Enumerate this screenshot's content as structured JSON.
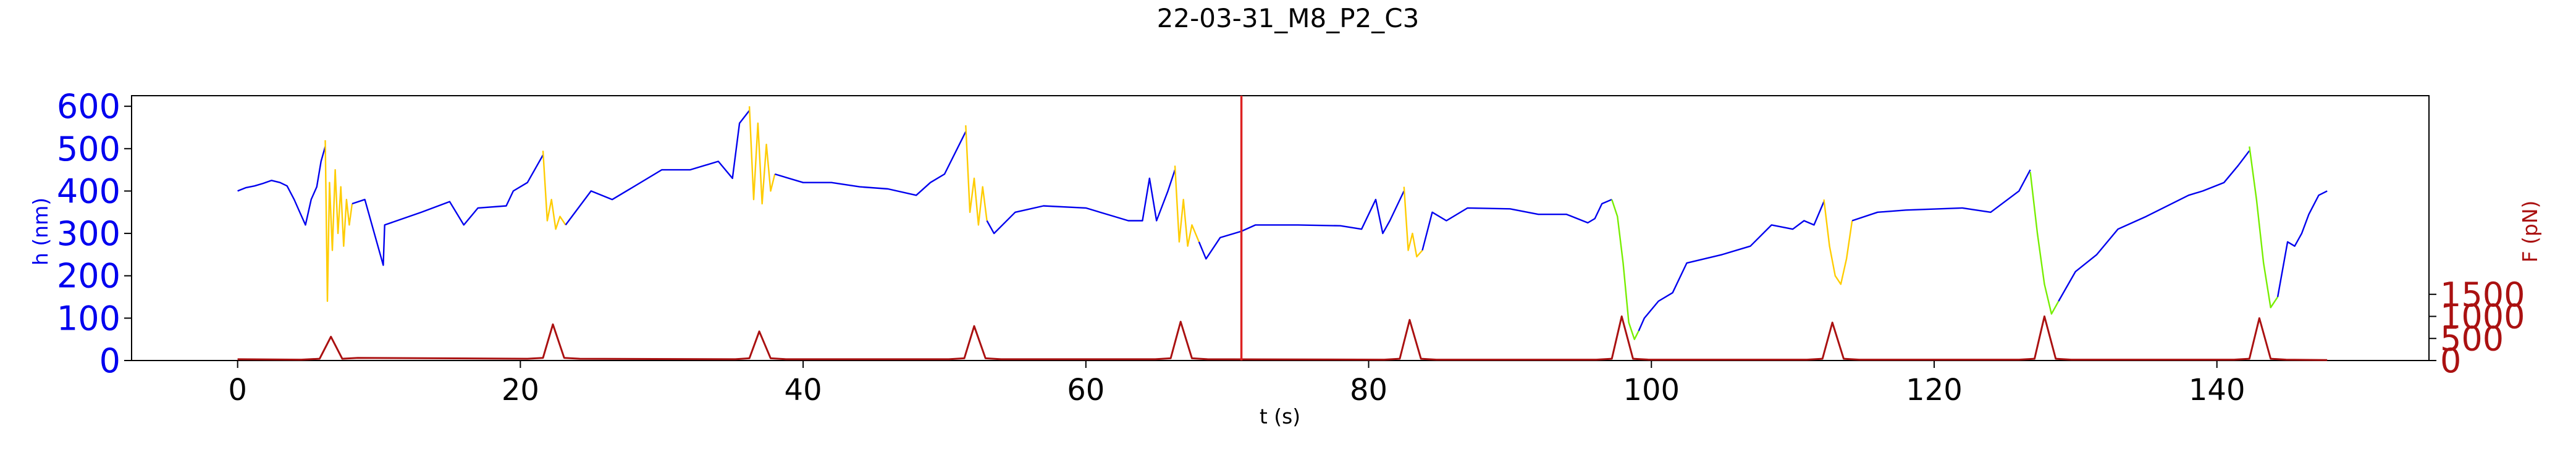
{
  "chart_data": {
    "type": "line",
    "title": "22-03-31_M8_P2_C3",
    "xlabel": "t (s)",
    "ylabel_left": "h (nm)",
    "ylabel_right": "F (pN)",
    "xlim": [
      -7.5,
      155
    ],
    "ylim_left": [
      0,
      625
    ],
    "ylim_right": [
      0,
      6000
    ],
    "x_ticks": [
      0,
      20,
      40,
      60,
      80,
      100,
      120,
      140
    ],
    "y_ticks_left": [
      0,
      100,
      200,
      300,
      400,
      500,
      600
    ],
    "y_ticks_right": [
      0,
      500,
      1000,
      1500
    ],
    "colors": {
      "height_line": "#0000ee",
      "compression_phase": "#ffcc00",
      "relaxation_phase": "#77ee00",
      "force_line": "#aa1111",
      "marker_line": "#dd2222",
      "left_axis": "#0000ee",
      "right_axis": "#aa1111"
    },
    "marker_x": 71,
    "grid": false,
    "legend": "none",
    "series": [
      {
        "axis": "left",
        "color": "#0000ee",
        "x": [
          0,
          0.6,
          1.2,
          1.8,
          2.4,
          3.0,
          3.5,
          4.0,
          4.4,
          4.8,
          5.2,
          5.6,
          5.9,
          6.2
        ],
        "y": [
          400,
          408,
          412,
          418,
          425,
          420,
          412,
          380,
          350,
          320,
          380,
          410,
          470,
          505
        ]
      },
      {
        "axis": "left",
        "color": "#ffcc00",
        "x": [
          6.2,
          6.35,
          6.5,
          6.7,
          6.9,
          7.1,
          7.3,
          7.5,
          7.7,
          7.9,
          8.1
        ],
        "y": [
          520,
          140,
          420,
          260,
          450,
          300,
          410,
          270,
          380,
          320,
          370
        ]
      },
      {
        "axis": "left",
        "color": "#0000ee",
        "x": [
          8.1,
          9.0,
          10.3,
          10.4,
          13.0,
          15.0,
          16.0,
          17.0,
          19.0,
          19.5,
          20.5,
          21.6
        ],
        "y": [
          370,
          380,
          225,
          320,
          350,
          375,
          320,
          360,
          365,
          400,
          420,
          485
        ]
      },
      {
        "axis": "left",
        "color": "#ffcc00",
        "x": [
          21.6,
          21.9,
          22.2,
          22.5,
          22.8,
          23.2
        ],
        "y": [
          495,
          330,
          380,
          310,
          340,
          320
        ]
      },
      {
        "axis": "left",
        "color": "#0000ee",
        "x": [
          23.2,
          25.0,
          26.5,
          28.0,
          30.0,
          32.0,
          34.0,
          35.0,
          35.5,
          36.2
        ],
        "y": [
          320,
          400,
          380,
          410,
          450,
          450,
          470,
          430,
          560,
          590
        ]
      },
      {
        "axis": "left",
        "color": "#ffcc00",
        "x": [
          36.2,
          36.5,
          36.8,
          37.1,
          37.4,
          37.7,
          38.0
        ],
        "y": [
          600,
          380,
          560,
          370,
          510,
          400,
          440
        ]
      },
      {
        "axis": "left",
        "color": "#0000ee",
        "x": [
          38.0,
          40.0,
          42.0,
          44.0,
          46.0,
          48.0,
          49.0,
          50.0,
          51.5
        ],
        "y": [
          440,
          420,
          420,
          410,
          405,
          390,
          420,
          440,
          540
        ]
      },
      {
        "axis": "left",
        "color": "#ffcc00",
        "x": [
          51.5,
          51.8,
          52.1,
          52.4,
          52.7,
          53.0
        ],
        "y": [
          555,
          350,
          430,
          320,
          410,
          330
        ]
      },
      {
        "axis": "left",
        "color": "#0000ee",
        "x": [
          53.0,
          53.5,
          55.0,
          57.0,
          60.0,
          62.0,
          63.0,
          64.0,
          64.5,
          65.0,
          65.8,
          66.3
        ],
        "y": [
          330,
          300,
          350,
          365,
          360,
          340,
          330,
          330,
          430,
          330,
          400,
          450
        ]
      },
      {
        "axis": "left",
        "color": "#ffcc00",
        "x": [
          66.3,
          66.6,
          66.9,
          67.2,
          67.5,
          68.0
        ],
        "y": [
          460,
          280,
          380,
          270,
          320,
          280
        ]
      },
      {
        "axis": "left",
        "color": "#0000ee",
        "x": [
          68.0,
          68.5,
          69.5,
          71.0,
          72.0,
          75.0,
          78.0,
          79.5,
          80.5,
          81.0,
          81.5,
          82.5
        ],
        "y": [
          280,
          240,
          290,
          305,
          320,
          320,
          318,
          310,
          380,
          300,
          330,
          400
        ]
      },
      {
        "axis": "left",
        "color": "#ffcc00",
        "x": [
          82.5,
          82.8,
          83.1,
          83.4,
          83.8
        ],
        "y": [
          410,
          260,
          300,
          245,
          260
        ]
      },
      {
        "axis": "left",
        "color": "#0000ee",
        "x": [
          83.8,
          84.5,
          85.5,
          87.0,
          90.0,
          92.0,
          94.0,
          95.5,
          96.0,
          96.5,
          97.2
        ],
        "y": [
          260,
          350,
          330,
          360,
          358,
          345,
          345,
          325,
          335,
          370,
          380
        ]
      },
      {
        "axis": "left",
        "color": "#77ee00",
        "x": [
          97.2,
          97.6,
          98.0,
          98.4,
          98.8,
          99.1
        ],
        "y": [
          380,
          340,
          230,
          90,
          50,
          70
        ]
      },
      {
        "axis": "left",
        "color": "#0000ee",
        "x": [
          99.1,
          99.5,
          100.5,
          101.5,
          102.5,
          105.0,
          107.0,
          108.5,
          110.0,
          110.8,
          111.5,
          112.2
        ],
        "y": [
          70,
          100,
          140,
          160,
          230,
          250,
          270,
          320,
          310,
          330,
          320,
          375
        ]
      },
      {
        "axis": "left",
        "color": "#ffcc00",
        "x": [
          112.2,
          112.6,
          113.0,
          113.4,
          113.8,
          114.2
        ],
        "y": [
          380,
          270,
          200,
          180,
          240,
          330
        ]
      },
      {
        "axis": "left",
        "color": "#0000ee",
        "x": [
          114.2,
          116.0,
          118.0,
          122.0,
          124.0,
          126.0,
          126.8
        ],
        "y": [
          330,
          350,
          355,
          360,
          350,
          400,
          450
        ]
      },
      {
        "axis": "left",
        "color": "#77ee00",
        "x": [
          126.8,
          127.3,
          127.8,
          128.3,
          128.8
        ],
        "y": [
          445,
          300,
          180,
          110,
          140
        ]
      },
      {
        "axis": "left",
        "color": "#0000ee",
        "x": [
          128.8,
          130.0,
          131.5,
          133.0,
          135.0,
          138.0,
          139.0,
          140.5,
          141.5,
          142.3
        ],
        "y": [
          140,
          210,
          250,
          310,
          340,
          390,
          400,
          420,
          460,
          495
        ]
      },
      {
        "axis": "left",
        "color": "#77ee00",
        "x": [
          142.3,
          142.8,
          143.3,
          143.8,
          144.3
        ],
        "y": [
          505,
          380,
          230,
          125,
          150
        ]
      },
      {
        "axis": "left",
        "color": "#0000ee",
        "x": [
          144.3,
          145.0,
          145.5,
          146.0,
          146.5,
          147.2,
          147.8
        ],
        "y": [
          150,
          280,
          270,
          300,
          345,
          390,
          400
        ]
      },
      {
        "axis": "right",
        "color": "#aa1111",
        "x": [
          0,
          4.5,
          5.8,
          6.6,
          7.4,
          8.5,
          20.5,
          21.6,
          22.3,
          23.1,
          24.2,
          35.2,
          36.2,
          36.9,
          37.7,
          38.8,
          50.3,
          51.4,
          52.1,
          52.9,
          54.0,
          64.9,
          66.0,
          66.7,
          67.5,
          68.6,
          81.1,
          82.2,
          82.9,
          83.7,
          84.8,
          96.1,
          97.2,
          97.9,
          98.7,
          99.8,
          111.0,
          112.1,
          112.8,
          113.6,
          114.7,
          126.0,
          127.1,
          127.8,
          128.6,
          129.7,
          141.2,
          142.3,
          143.0,
          143.8,
          144.9,
          147.8
        ],
        "y": [
          30,
          20,
          40,
          540,
          40,
          60,
          40,
          60,
          820,
          60,
          40,
          30,
          50,
          660,
          50,
          30,
          30,
          50,
          780,
          50,
          30,
          30,
          50,
          880,
          50,
          30,
          20,
          40,
          920,
          40,
          20,
          20,
          40,
          1000,
          40,
          20,
          20,
          40,
          860,
          40,
          20,
          20,
          40,
          1000,
          40,
          20,
          20,
          40,
          960,
          40,
          20,
          10
        ]
      }
    ]
  }
}
